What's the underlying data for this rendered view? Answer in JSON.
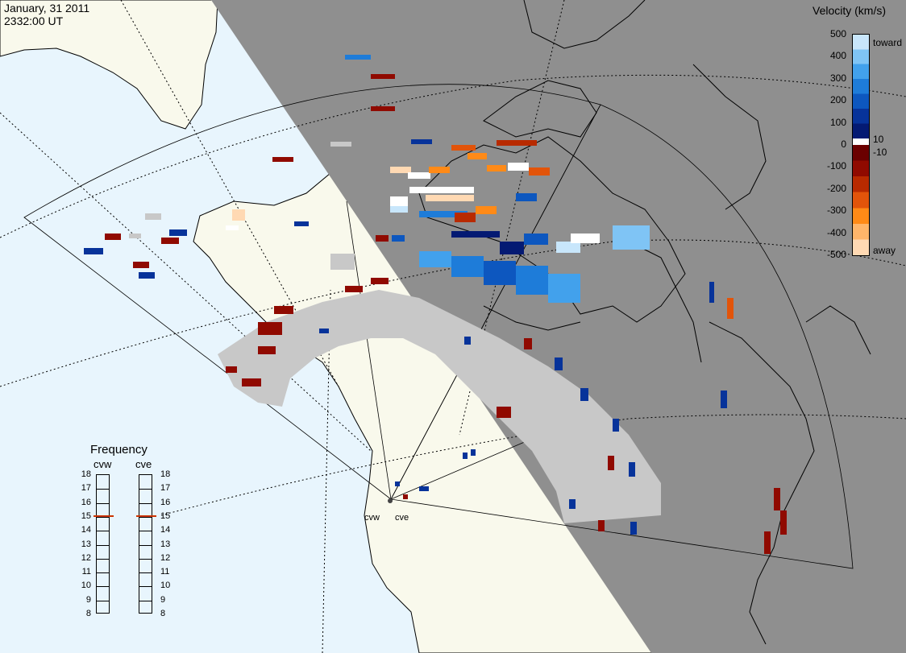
{
  "title": {
    "date": "January, 31 2011",
    "time": "2332:00 UT"
  },
  "colorbar": {
    "title": "Velocity (km/s)",
    "toward_label": "toward",
    "away_label": "away",
    "ticks_pos": [
      "500",
      "400",
      "300",
      "200",
      "100",
      "0",
      "-100",
      "-200",
      "-300",
      "-400",
      "-500"
    ],
    "small_pos": "10",
    "small_neg": "-10",
    "colors": {
      "toward": [
        "#c8e6fb",
        "#7fc4f5",
        "#42a1ec",
        "#1e7cd9",
        "#0d57bf",
        "#07339a",
        "#041a73"
      ],
      "zero": "#ffffff",
      "away": [
        "#6b0000",
        "#900a00",
        "#b82a00",
        "#e2540a",
        "#ff8a17",
        "#ffb56a",
        "#ffd9b3"
      ]
    }
  },
  "frequency": {
    "title": "Frequency",
    "radars": [
      "cvw",
      "cve"
    ],
    "scale": [
      "18",
      "17",
      "16",
      "15",
      "14",
      "13",
      "12",
      "11",
      "10",
      "9",
      "8"
    ],
    "cvw_mhz": 15,
    "cve_mhz": 15,
    "marker_color": "#cc3300"
  },
  "radar_sites": [
    "cvw",
    "cve"
  ],
  "map_colors": {
    "ocean": "#e8f5fd",
    "land_sunlit": "#f9f9ec",
    "night": "#8f8f8f",
    "ground_scatter": "#c8c8c8"
  }
}
